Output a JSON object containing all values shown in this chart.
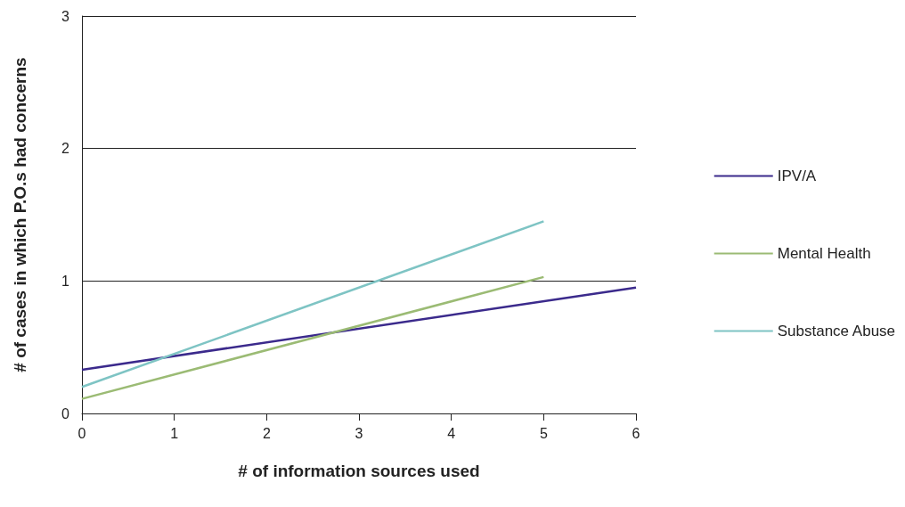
{
  "chart_data": {
    "type": "line",
    "xlabel": "# of information sources used",
    "ylabel": "# of cases in which P.O.s had concerns",
    "xlim": [
      0,
      6
    ],
    "xticks": [
      0,
      1,
      2,
      3,
      4,
      5,
      6
    ],
    "ylim": [
      0,
      3
    ],
    "yticks": [
      0,
      1,
      2,
      3
    ],
    "grid": "y",
    "legend": "right",
    "marker": "none",
    "line_style": "solid",
    "series": [
      {
        "name": "IPV/A",
        "color": "#3b2a8c",
        "x": [
          0,
          6
        ],
        "values": [
          0.33,
          0.95
        ]
      },
      {
        "name": "Mental Health",
        "color": "#9bbb74",
        "x": [
          0,
          5
        ],
        "values": [
          0.11,
          1.03
        ]
      },
      {
        "name": "Substance Abuse",
        "color": "#7ec4c4",
        "x": [
          0,
          5
        ],
        "values": [
          0.2,
          1.45
        ]
      }
    ]
  }
}
